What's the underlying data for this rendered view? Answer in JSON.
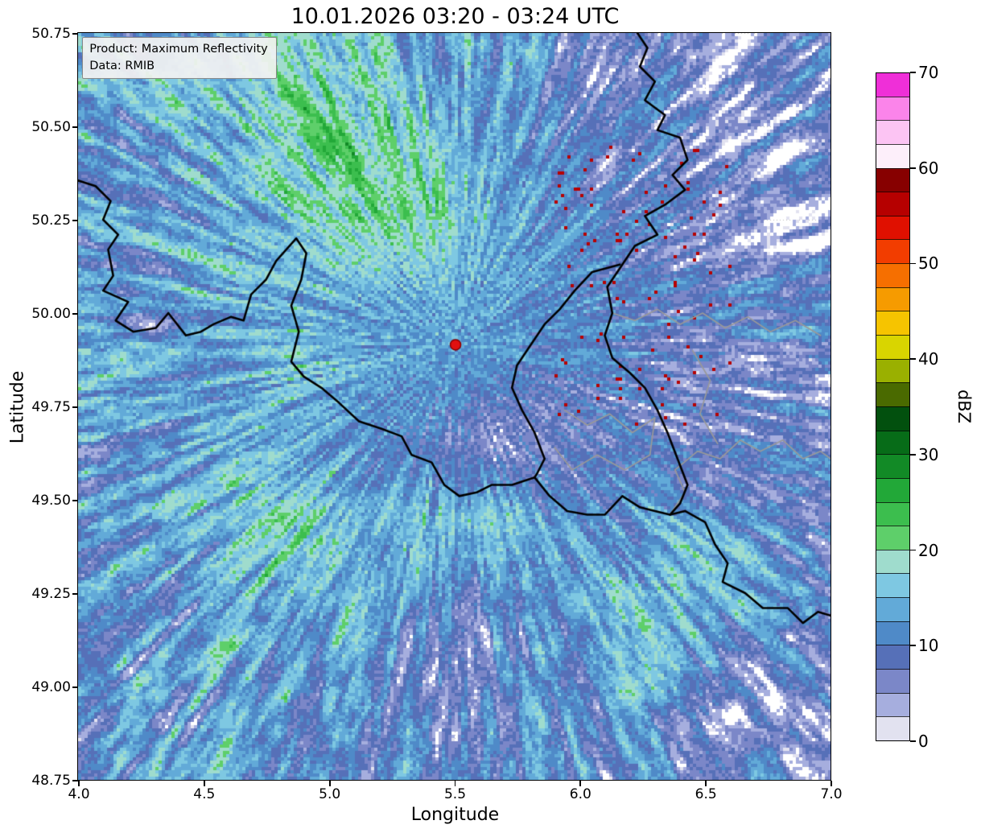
{
  "chart_data": {
    "type": "heatmap",
    "title": "10.01.2026 03:20 - 03:24 UTC",
    "xlabel": "Longitude",
    "ylabel": "Latitude",
    "xlim": [
      4.0,
      7.0
    ],
    "ylim": [
      48.75,
      50.75
    ],
    "xticks": [
      "4.0",
      "4.5",
      "5.0",
      "5.5",
      "6.0",
      "6.5",
      "7.0"
    ],
    "yticks": [
      "50.75",
      "50.50",
      "50.25",
      "50.00",
      "49.75",
      "49.50",
      "49.25",
      "49.00",
      "48.75"
    ],
    "grid": true,
    "annotation_box": {
      "line1": "Product: Maximum Reflectivity",
      "line2": "Data: RMIB"
    },
    "radar_site": {
      "lon": 5.505,
      "lat": 49.915,
      "color": "#e01010",
      "edge_color": "#8a0000"
    },
    "colorbar": {
      "label": "dBZ",
      "vmin": 0,
      "vmax": 70,
      "step_dbz": 2.5,
      "ticks": [
        "0",
        "10",
        "20",
        "30",
        "40",
        "50",
        "60",
        "70"
      ],
      "colors": [
        "#e2e2f0",
        "#a6aede",
        "#7b87c8",
        "#5670b8",
        "#4f8ac8",
        "#62aad8",
        "#7ec8e2",
        "#9fdccd",
        "#5ecf6a",
        "#3cbe4e",
        "#22a838",
        "#128a26",
        "#076c18",
        "#02500e",
        "#4a6a00",
        "#9ab000",
        "#d9d500",
        "#f6c400",
        "#f69b00",
        "#f66f00",
        "#f23d00",
        "#e01000",
        "#b60000",
        "#870000",
        "#fdeffa",
        "#fcc4f3",
        "#fb84ea",
        "#ef2fd8"
      ]
    },
    "field": {
      "units": "dBZ",
      "no_echo_color": "#ffffff",
      "no_echo_threshold": 2,
      "grid_lon_start": 4.0,
      "grid_lon_step": 0.25,
      "grid_lat_start": 50.75,
      "grid_lat_step": -0.2,
      "cols": 12,
      "rows": 10,
      "base_dbz": [
        [
          13,
          12,
          15,
          18,
          17,
          14,
          13,
          11,
          6,
          8,
          3,
          7
        ],
        [
          11,
          13,
          16,
          20,
          21,
          18,
          14,
          11,
          7,
          9,
          4,
          6
        ],
        [
          10,
          12,
          13,
          16,
          19,
          19,
          15,
          12,
          9,
          7,
          7,
          5
        ],
        [
          11,
          12,
          14,
          14,
          15,
          14,
          14,
          12,
          10,
          9,
          8,
          7
        ],
        [
          12,
          12,
          13,
          16,
          13,
          13,
          12,
          9,
          10,
          8,
          7,
          8
        ],
        [
          12,
          13,
          15,
          13,
          12,
          9,
          5,
          7,
          8,
          5,
          5,
          9
        ],
        [
          12,
          14,
          17,
          18,
          14,
          16,
          18,
          12,
          11,
          13,
          14,
          11
        ],
        [
          11,
          13,
          15,
          16,
          14,
          13,
          10,
          12,
          13,
          16,
          14,
          10
        ],
        [
          10,
          13,
          13,
          13,
          11,
          6,
          8,
          11,
          12,
          12,
          9,
          8
        ],
        [
          11,
          13,
          12,
          11,
          10,
          8,
          9,
          10,
          11,
          9,
          7,
          7
        ]
      ]
    },
    "borders_black": [
      [
        [
          4.0,
          50.355
        ],
        [
          4.07,
          50.34
        ],
        [
          4.13,
          50.3
        ],
        [
          4.1,
          50.25
        ],
        [
          4.16,
          50.21
        ],
        [
          4.12,
          50.17
        ],
        [
          4.14,
          50.1
        ],
        [
          4.1,
          50.06
        ],
        [
          4.2,
          50.03
        ],
        [
          4.15,
          49.98
        ],
        [
          4.22,
          49.95
        ],
        [
          4.31,
          49.96
        ],
        [
          4.36,
          50.0
        ],
        [
          4.43,
          49.94
        ],
        [
          4.49,
          49.95
        ],
        [
          4.54,
          49.97
        ],
        [
          4.61,
          49.99
        ],
        [
          4.66,
          49.98
        ],
        [
          4.69,
          50.05
        ],
        [
          4.75,
          50.09
        ],
        [
          4.79,
          50.14
        ],
        [
          4.83,
          50.17
        ],
        [
          4.87,
          50.2
        ],
        [
          4.91,
          50.16
        ],
        [
          4.89,
          50.09
        ],
        [
          4.85,
          50.02
        ],
        [
          4.88,
          49.95
        ],
        [
          4.85,
          49.87
        ],
        [
          4.9,
          49.83
        ],
        [
          4.97,
          49.8
        ],
        [
          5.04,
          49.76
        ],
        [
          5.12,
          49.71
        ],
        [
          5.21,
          49.69
        ],
        [
          5.29,
          49.67
        ],
        [
          5.33,
          49.62
        ],
        [
          5.41,
          49.6
        ],
        [
          5.46,
          49.54
        ],
        [
          5.52,
          49.51
        ],
        [
          5.59,
          49.52
        ],
        [
          5.65,
          49.54
        ],
        [
          5.73,
          49.54
        ],
        [
          5.82,
          49.56
        ],
        [
          5.88,
          49.51
        ],
        [
          5.95,
          49.47
        ],
        [
          6.03,
          49.46
        ],
        [
          6.1,
          49.46
        ],
        [
          6.17,
          49.51
        ],
        [
          6.24,
          49.48
        ],
        [
          6.3,
          49.47
        ],
        [
          6.36,
          49.46
        ],
        [
          6.42,
          49.47
        ],
        [
          6.5,
          49.44
        ],
        [
          6.54,
          49.38
        ],
        [
          6.59,
          49.33
        ],
        [
          6.57,
          49.28
        ],
        [
          6.66,
          49.25
        ],
        [
          6.73,
          49.21
        ],
        [
          6.83,
          49.21
        ],
        [
          6.89,
          49.17
        ],
        [
          6.95,
          49.2
        ],
        [
          7.0,
          49.19
        ]
      ],
      [
        [
          6.23,
          50.75
        ],
        [
          6.27,
          50.71
        ],
        [
          6.24,
          50.66
        ],
        [
          6.3,
          50.62
        ],
        [
          6.26,
          50.57
        ],
        [
          6.34,
          50.53
        ],
        [
          6.31,
          50.49
        ],
        [
          6.4,
          50.47
        ],
        [
          6.43,
          50.41
        ],
        [
          6.37,
          50.37
        ],
        [
          6.42,
          50.33
        ],
        [
          6.34,
          50.29
        ],
        [
          6.26,
          50.26
        ],
        [
          6.31,
          50.21
        ],
        [
          6.22,
          50.18
        ],
        [
          6.17,
          50.13
        ],
        [
          6.11,
          50.07
        ],
        [
          6.13,
          50.0
        ],
        [
          6.1,
          49.94
        ],
        [
          6.13,
          49.88
        ],
        [
          6.2,
          49.84
        ],
        [
          6.26,
          49.8
        ],
        [
          6.31,
          49.74
        ],
        [
          6.35,
          49.68
        ],
        [
          6.39,
          49.61
        ],
        [
          6.43,
          49.54
        ],
        [
          6.4,
          49.49
        ],
        [
          6.36,
          49.46
        ]
      ],
      [
        [
          6.16,
          50.13
        ],
        [
          6.05,
          50.11
        ],
        [
          5.98,
          50.06
        ],
        [
          5.92,
          50.01
        ],
        [
          5.86,
          49.97
        ],
        [
          5.8,
          49.91
        ],
        [
          5.75,
          49.86
        ],
        [
          5.73,
          49.8
        ],
        [
          5.77,
          49.74
        ],
        [
          5.82,
          49.68
        ],
        [
          5.86,
          49.61
        ],
        [
          5.83,
          49.57
        ],
        [
          5.82,
          49.56
        ]
      ]
    ],
    "borders_gray": [
      [
        [
          6.36,
          49.46
        ],
        [
          6.42,
          49.52
        ],
        [
          6.38,
          49.58
        ],
        [
          6.47,
          49.63
        ],
        [
          6.56,
          49.61
        ],
        [
          6.64,
          49.66
        ],
        [
          6.72,
          49.63
        ],
        [
          6.81,
          49.66
        ],
        [
          6.89,
          49.61
        ],
        [
          6.96,
          49.63
        ],
        [
          7.0,
          49.61
        ]
      ],
      [
        [
          6.13,
          50.0
        ],
        [
          6.22,
          49.98
        ],
        [
          6.31,
          50.01
        ],
        [
          6.4,
          49.97
        ],
        [
          6.49,
          50.0
        ],
        [
          6.58,
          49.96
        ],
        [
          6.67,
          49.99
        ],
        [
          6.76,
          49.95
        ],
        [
          6.86,
          49.98
        ],
        [
          6.96,
          49.94
        ]
      ],
      [
        [
          5.94,
          49.74
        ],
        [
          6.03,
          49.7
        ],
        [
          6.12,
          49.73
        ],
        [
          6.21,
          49.68
        ],
        [
          6.3,
          49.72
        ],
        [
          6.28,
          49.62
        ],
        [
          6.18,
          49.58
        ],
        [
          6.07,
          49.62
        ],
        [
          5.97,
          49.58
        ],
        [
          5.9,
          49.64
        ]
      ],
      [
        [
          6.45,
          49.9
        ],
        [
          6.52,
          49.82
        ],
        [
          6.48,
          49.73
        ],
        [
          6.55,
          49.65
        ]
      ]
    ]
  }
}
